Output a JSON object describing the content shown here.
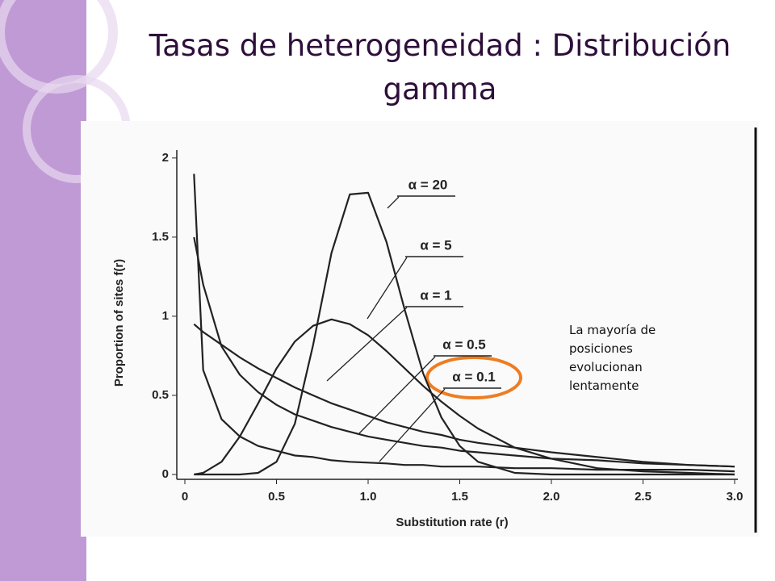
{
  "slide": {
    "title": "Tasas de heterogeneidad : Distribución gamma",
    "note": "La mayoría de posiciones evolucionan lentamente"
  },
  "chart_data": {
    "type": "line",
    "x_label": "Substitution rate (r)",
    "y_label": "Proportion of sites f(r)",
    "x": [
      0.05,
      0.1,
      0.2,
      0.3,
      0.4,
      0.5,
      0.6,
      0.7,
      0.8,
      0.9,
      1.0,
      1.1,
      1.2,
      1.3,
      1.4,
      1.5,
      1.6,
      1.8,
      2.0,
      2.25,
      2.5,
      2.75,
      3.0
    ],
    "series": [
      {
        "name": "α = 20",
        "color": "#222222",
        "values": [
          0,
          0,
          0,
          0,
          0.01,
          0.08,
          0.32,
          0.82,
          1.4,
          1.77,
          1.78,
          1.47,
          1.04,
          0.64,
          0.36,
          0.18,
          0.08,
          0.01,
          0,
          0,
          0,
          0,
          0
        ]
      },
      {
        "name": "α = 5",
        "color": "#222222",
        "values": [
          0,
          0.01,
          0.08,
          0.24,
          0.45,
          0.67,
          0.84,
          0.94,
          0.98,
          0.95,
          0.88,
          0.78,
          0.67,
          0.56,
          0.46,
          0.37,
          0.29,
          0.17,
          0.1,
          0.04,
          0.02,
          0.01,
          0
        ]
      },
      {
        "name": "α = 1",
        "color": "#222222",
        "values": [
          0.95,
          0.9,
          0.82,
          0.74,
          0.67,
          0.61,
          0.55,
          0.5,
          0.45,
          0.41,
          0.37,
          0.33,
          0.3,
          0.27,
          0.25,
          0.22,
          0.2,
          0.17,
          0.14,
          0.11,
          0.08,
          0.06,
          0.05
        ]
      },
      {
        "name": "α = 0.5",
        "color": "#222222",
        "values": [
          1.5,
          1.2,
          0.81,
          0.63,
          0.52,
          0.44,
          0.38,
          0.34,
          0.3,
          0.27,
          0.24,
          0.22,
          0.2,
          0.18,
          0.17,
          0.15,
          0.14,
          0.12,
          0.1,
          0.09,
          0.07,
          0.06,
          0.05
        ]
      },
      {
        "name": "α = 0.1",
        "color": "#222222",
        "values": [
          1.9,
          0.66,
          0.35,
          0.24,
          0.18,
          0.15,
          0.12,
          0.11,
          0.09,
          0.08,
          0.075,
          0.07,
          0.06,
          0.06,
          0.05,
          0.05,
          0.05,
          0.04,
          0.04,
          0.03,
          0.03,
          0.03,
          0.02
        ]
      }
    ],
    "xlim": [
      0,
      3.0
    ],
    "ylim": [
      0,
      2.05
    ],
    "xticks": [
      0,
      0.5,
      {
        "value": 1,
        "label": "1.0"
      },
      1.5,
      {
        "value": 2,
        "label": "2.0"
      },
      2.5,
      {
        "value": 3,
        "label": "3.0"
      }
    ],
    "yticks": [
      0,
      0.5,
      1,
      1.5,
      2
    ],
    "grid": false
  }
}
